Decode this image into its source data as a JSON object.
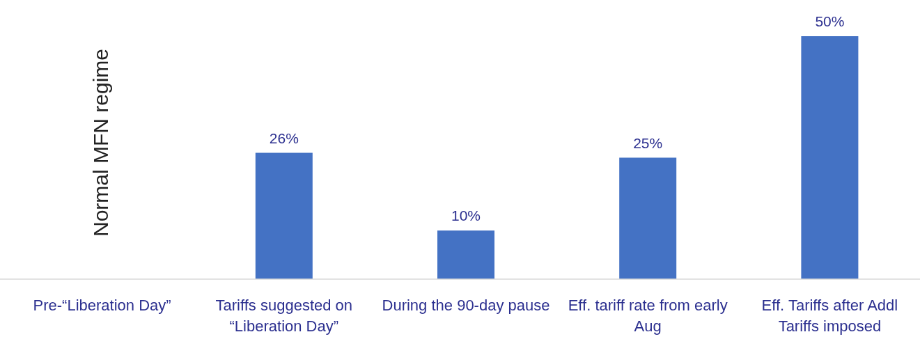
{
  "chart_data": {
    "type": "bar",
    "categories": [
      "Pre-“Liberation Day”",
      "Tariffs suggested on “Liberation Day”",
      "During the 90-day pause",
      "Eff. tariff rate from early Aug",
      "Eff. Tariffs after Addl Tariffs imposed"
    ],
    "values": [
      null,
      26,
      10,
      25,
      50
    ],
    "value_labels": [
      null,
      "26%",
      "10%",
      "25%",
      "50%"
    ],
    "color": "#4472c4",
    "annotations": [
      "Normal MFN regime"
    ]
  }
}
